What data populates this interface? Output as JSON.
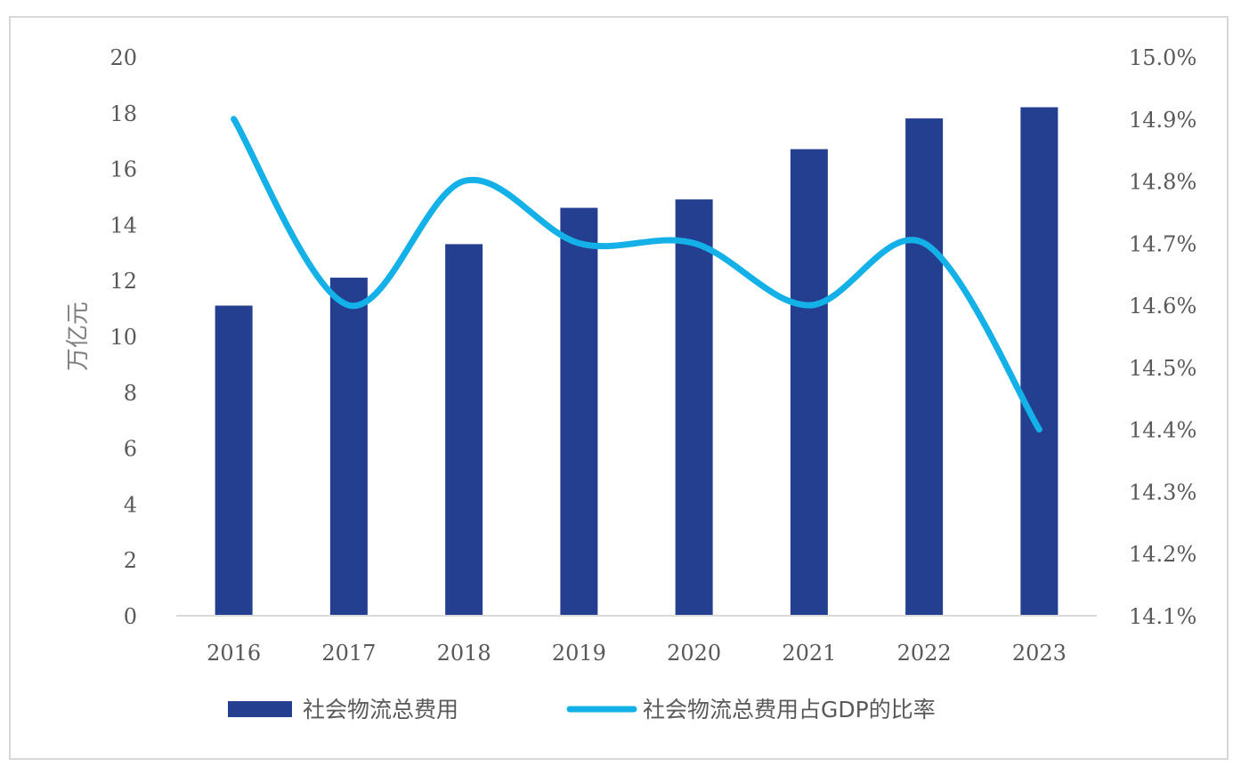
{
  "chart_data": {
    "type": "bar",
    "categories": [
      "2016",
      "2017",
      "2018",
      "2019",
      "2020",
      "2021",
      "2022",
      "2023"
    ],
    "series": [
      {
        "name": "社会物流总费用",
        "type": "bar",
        "axis": "left",
        "color": "#243f8f",
        "values": [
          11.1,
          12.1,
          13.3,
          14.6,
          14.9,
          16.7,
          17.8,
          18.2
        ]
      },
      {
        "name": "社会物流总费用占GDP的比率",
        "type": "line",
        "axis": "right",
        "smooth": true,
        "color": "#14b0e8",
        "values": [
          14.9,
          14.6,
          14.8,
          14.7,
          14.7,
          14.6,
          14.7,
          14.4
        ]
      }
    ],
    "ylabel": "万亿元",
    "ylim": [
      0,
      20
    ],
    "yticks": [
      "0",
      "2",
      "4",
      "6",
      "8",
      "10",
      "12",
      "14",
      "16",
      "18",
      "20"
    ],
    "y2lim": [
      14.1,
      15.0
    ],
    "y2ticks": [
      "14.1%",
      "14.2%",
      "14.3%",
      "14.4%",
      "14.5%",
      "14.6%",
      "14.7%",
      "14.8%",
      "14.9%",
      "15.0%"
    ],
    "legend": "bottom",
    "grid": false
  }
}
